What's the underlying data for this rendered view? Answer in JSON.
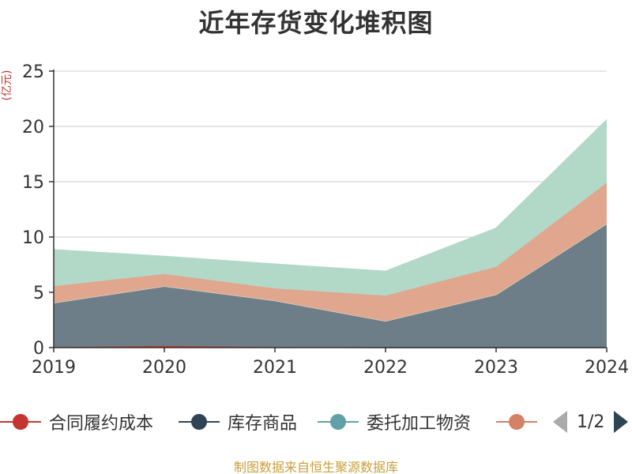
{
  "title": "近年存货变化堆积图",
  "unit_label": "(亿元)",
  "source": "制图数据来自恒生聚源数据库",
  "pager": {
    "text": "1/2"
  },
  "colors": {
    "axis": "#333333",
    "grid": "#cccccc",
    "text": "#333333"
  },
  "legend": [
    {
      "label": "合同履约成本",
      "color": "#c23531"
    },
    {
      "label": "库存商品",
      "color": "#2f4554"
    },
    {
      "label": "委托加工物资",
      "color": "#61a0a8"
    },
    {
      "label": "",
      "color": "#d48265"
    }
  ],
  "chart_data": {
    "type": "area",
    "stacked": true,
    "title": "近年存货变化堆积图",
    "ylabel": "(亿元)",
    "categories": [
      "2019",
      "2020",
      "2021",
      "2022",
      "2023",
      "2024"
    ],
    "ylim": [
      0,
      25
    ],
    "yticks": [
      0,
      5,
      10,
      15,
      20,
      25
    ],
    "grid": true,
    "series": [
      {
        "name": "合同履约成本",
        "color": "#c23531",
        "fill": "#c23531",
        "values": [
          0.05,
          0.15,
          0.05,
          0.0,
          0.0,
          0.0
        ]
      },
      {
        "name": "库存商品",
        "color": "#2f4554",
        "fill": "#6e7e88",
        "values": [
          4.0,
          5.4,
          4.2,
          2.4,
          4.8,
          11.2
        ]
      },
      {
        "name": "委托加工物资",
        "color": "#61a0a8",
        "fill": "#d5d5c0",
        "values": [
          0.0,
          0.0,
          0.0,
          0.0,
          0.0,
          0.0
        ]
      },
      {
        "name": "",
        "color": "#d48265",
        "fill": "#e0a68e",
        "values": [
          1.5,
          1.1,
          1.1,
          2.3,
          2.5,
          3.7
        ]
      },
      {
        "name": "",
        "color": "#91c7ae",
        "fill": "#b2d9c8",
        "values": [
          3.3,
          1.6,
          2.2,
          2.2,
          3.5,
          5.7
        ]
      }
    ]
  }
}
